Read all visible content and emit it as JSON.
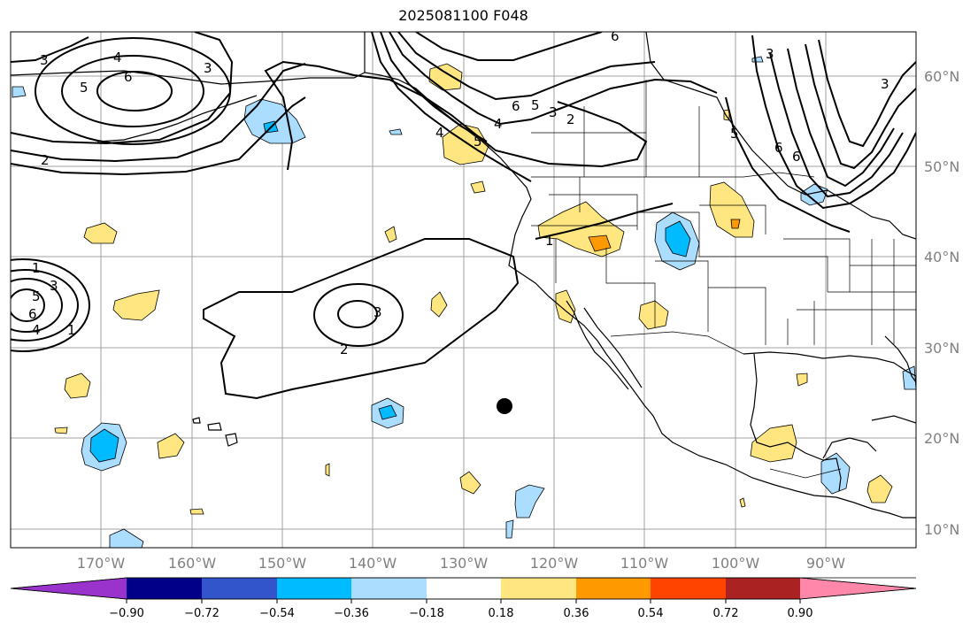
{
  "title": "2025081100 F048",
  "map": {
    "projection": "plate-carree",
    "lon_range": [
      -180,
      -80
    ],
    "lat_range": [
      8,
      66
    ],
    "lon_ticks": [
      "170°W",
      "160°W",
      "150°W",
      "140°W",
      "130°W",
      "120°W",
      "110°W",
      "100°W",
      "90°W"
    ],
    "lat_ticks": [
      "60°N",
      "50°N",
      "40°N",
      "30°N",
      "20°N",
      "10°N"
    ],
    "gridlines": true,
    "land_outline_color": "#000000",
    "grid_color": "#a0a0a0"
  },
  "contours": {
    "line_color": "#000000",
    "labels": [
      "3",
      "4",
      "5",
      "6",
      "3",
      "2",
      "3",
      "6",
      "5",
      "4",
      "3",
      "2",
      "6",
      "5",
      "3",
      "6",
      "5",
      "6",
      "4",
      "1",
      "3",
      "2",
      "1",
      "3",
      "5",
      "6",
      "4",
      "1"
    ]
  },
  "colorbar": {
    "colors": [
      "#9933cc",
      "#000088",
      "#3355cc",
      "#00bbff",
      "#aaddff",
      "#ffffff",
      "#ffe680",
      "#ff9900",
      "#ff4400",
      "#aa2222",
      "#ff88aa"
    ],
    "tick_labels": [
      "−0.90",
      "−0.72",
      "−0.54",
      "−0.36",
      "−0.18",
      "0.18",
      "0.36",
      "0.54",
      "0.72",
      "0.90"
    ]
  },
  "marker": {
    "color": "#000000"
  }
}
